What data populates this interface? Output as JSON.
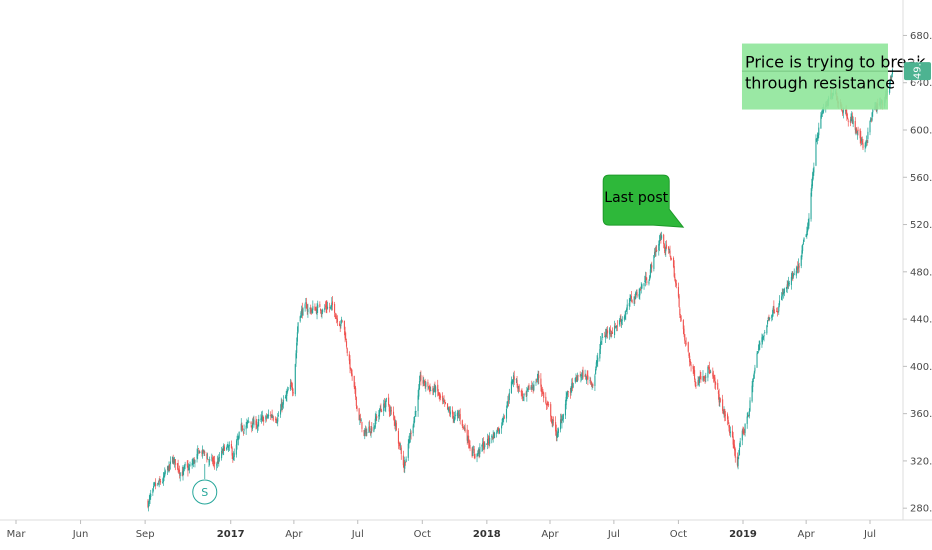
{
  "chart_data": {
    "type": "candlestick",
    "ylim": [
      270,
      710
    ],
    "y_ticks": [
      280,
      320,
      360,
      400,
      440,
      480,
      520,
      560,
      600,
      640,
      680
    ],
    "y_tick_labels": [
      "280.0",
      "320.0",
      "360.0",
      "400.0",
      "440.0",
      "480.0",
      "520.0",
      "560.0",
      "600.0",
      "640.0",
      "680.0"
    ],
    "x_ticks": [
      {
        "label": "Mar",
        "date": "2016-03",
        "bold": false
      },
      {
        "label": "Jun",
        "date": "2016-06",
        "bold": false
      },
      {
        "label": "Sep",
        "date": "2016-09",
        "bold": false
      },
      {
        "label": "2017",
        "date": "2017-01",
        "bold": true
      },
      {
        "label": "Apr",
        "date": "2017-04",
        "bold": false
      },
      {
        "label": "Jul",
        "date": "2017-07",
        "bold": false
      },
      {
        "label": "Oct",
        "date": "2017-10",
        "bold": false
      },
      {
        "label": "2018",
        "date": "2018-01",
        "bold": true
      },
      {
        "label": "Apr",
        "date": "2018-04",
        "bold": false
      },
      {
        "label": "Jul",
        "date": "2018-07",
        "bold": false
      },
      {
        "label": "Oct",
        "date": "2018-10",
        "bold": false
      },
      {
        "label": "2019",
        "date": "2019-01",
        "bold": true
      },
      {
        "label": "Apr",
        "date": "2019-04",
        "bold": false
      },
      {
        "label": "Jul",
        "date": "2019-07",
        "bold": false
      }
    ],
    "price_path": [
      [
        "2016-09-05",
        285
      ],
      [
        "2016-09-25",
        300
      ],
      [
        "2016-10-10",
        318
      ],
      [
        "2016-11-01",
        310
      ],
      [
        "2016-11-20",
        328
      ],
      [
        "2016-12-10",
        315
      ],
      [
        "2016-12-25",
        330
      ],
      [
        "2017-01-05",
        322
      ],
      [
        "2017-01-20",
        350
      ],
      [
        "2017-02-15",
        352
      ],
      [
        "2017-03-10",
        362
      ],
      [
        "2017-03-31",
        382
      ],
      [
        "2017-04-08",
        448
      ],
      [
        "2017-04-30",
        448
      ],
      [
        "2017-05-20",
        452
      ],
      [
        "2017-06-10",
        438
      ],
      [
        "2017-06-28",
        370
      ],
      [
        "2017-07-10",
        340
      ],
      [
        "2017-07-25",
        355
      ],
      [
        "2017-08-10",
        370
      ],
      [
        "2017-08-25",
        350
      ],
      [
        "2017-09-05",
        318
      ],
      [
        "2017-09-15",
        345
      ],
      [
        "2017-09-28",
        385
      ],
      [
        "2017-10-20",
        380
      ],
      [
        "2017-11-05",
        358
      ],
      [
        "2017-11-25",
        355
      ],
      [
        "2017-12-15",
        326
      ],
      [
        "2017-12-28",
        332
      ],
      [
        "2018-01-20",
        350
      ],
      [
        "2018-02-08",
        392
      ],
      [
        "2018-02-25",
        370
      ],
      [
        "2018-03-15",
        392
      ],
      [
        "2018-03-28",
        365
      ],
      [
        "2018-04-12",
        340
      ],
      [
        "2018-04-25",
        375
      ],
      [
        "2018-05-15",
        392
      ],
      [
        "2018-06-01",
        388
      ],
      [
        "2018-06-15",
        425
      ],
      [
        "2018-07-10",
        440
      ],
      [
        "2018-08-01",
        460
      ],
      [
        "2018-08-20",
        478
      ],
      [
        "2018-09-05",
        510
      ],
      [
        "2018-09-22",
        490
      ],
      [
        "2018-10-10",
        420
      ],
      [
        "2018-10-25",
        388
      ],
      [
        "2018-11-12",
        402
      ],
      [
        "2018-11-28",
        370
      ],
      [
        "2018-12-10",
        352
      ],
      [
        "2018-12-24",
        320
      ],
      [
        "2019-01-10",
        365
      ],
      [
        "2019-01-20",
        408
      ],
      [
        "2019-02-10",
        448
      ],
      [
        "2019-03-01",
        462
      ],
      [
        "2019-03-20",
        478
      ],
      [
        "2019-04-05",
        520
      ],
      [
        "2019-04-15",
        595
      ],
      [
        "2019-04-28",
        622
      ],
      [
        "2019-05-15",
        628
      ],
      [
        "2019-06-05",
        610
      ],
      [
        "2019-06-22",
        585
      ],
      [
        "2019-07-05",
        615
      ],
      [
        "2019-07-20",
        622
      ],
      [
        "2019-08-02",
        650
      ]
    ],
    "last_price_label": "649.8",
    "last_price": 649.8,
    "resistance_level": 649.8,
    "annotations": [
      {
        "id": "last-post",
        "text": "Last post",
        "date": "2018-09-15",
        "price": 522,
        "color": "#2eb83a"
      },
      {
        "id": "resistance-note",
        "lines": [
          "Price is trying to break",
          "through resistance"
        ],
        "date": "2019-04-25",
        "price": 652,
        "color": "#8fe59a"
      }
    ],
    "marker": {
      "label": "S",
      "date": "2016-11-25",
      "color": "#26a69a"
    },
    "colors": {
      "up": "#26a69a",
      "down": "#ef5350",
      "axis_text": "#4a4a4a",
      "price_tag": "#4db391"
    }
  }
}
